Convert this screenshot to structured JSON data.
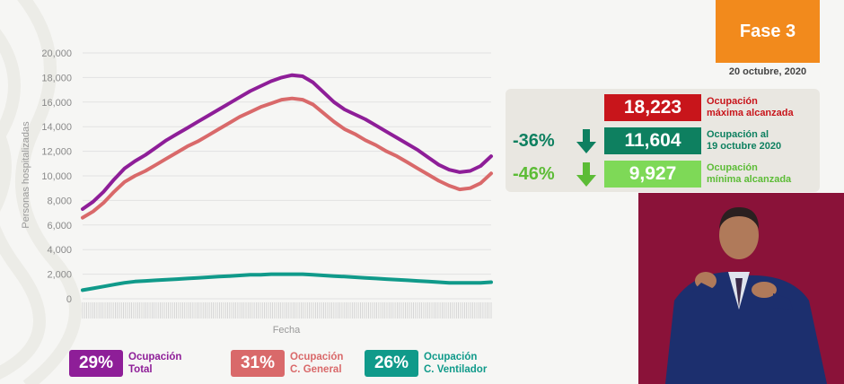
{
  "header": {
    "phase_badge": "Fase 3",
    "date": "20 octubre, 2020"
  },
  "stats": [
    {
      "pct": "",
      "value": "18,223",
      "label_line1": "Ocupación",
      "label_line2": "máxima alcanzada",
      "box_color": "#c8151b",
      "text_color": "#c8151b",
      "arrow": false
    },
    {
      "pct": "-36%",
      "value": "11,604",
      "label_line1": "Ocupación al",
      "label_line2": "19 octubre 2020",
      "box_color": "#0e8060",
      "text_color": "#0e8060",
      "arrow": true
    },
    {
      "pct": "-46%",
      "value": "9,927",
      "label_line1": "Ocupación",
      "label_line2": "mínima alcanzada",
      "box_color": "#7ed957",
      "text_color": "#5cbc36",
      "arrow": true
    }
  ],
  "legend": [
    {
      "pct": "29%",
      "line1": "Ocupación",
      "line2": "Total",
      "color": "#8e1e98"
    },
    {
      "pct": "31%",
      "line1": "Ocupación",
      "line2": "C. General",
      "color": "#d9696a"
    },
    {
      "pct": "26%",
      "line1": "Ocupación",
      "line2": "C. Ventilador",
      "color": "#109a8a"
    }
  ],
  "chart_data": {
    "type": "line",
    "xlabel": "Fecha",
    "ylabel": "Personas hospitalizadas",
    "ylim": [
      0,
      20000
    ],
    "yticks": [
      "0",
      "2,000",
      "4,000",
      "6,000",
      "8,000",
      "10,000",
      "12,000",
      "14,000",
      "16,000",
      "18,000",
      "20,000"
    ],
    "grid": true,
    "series": [
      {
        "name": "Ocupación Total",
        "color": "#8e1e98",
        "values": [
          7300,
          7900,
          8700,
          9700,
          10600,
          11200,
          11700,
          12300,
          12900,
          13400,
          13900,
          14400,
          14900,
          15400,
          15900,
          16400,
          16900,
          17300,
          17700,
          18000,
          18200,
          18100,
          17600,
          16800,
          16000,
          15400,
          15000,
          14600,
          14100,
          13600,
          13100,
          12600,
          12100,
          11500,
          10900,
          10500,
          10300,
          10400,
          10800,
          11600
        ]
      },
      {
        "name": "Ocupación C. General",
        "color": "#d9696a",
        "values": [
          6600,
          7100,
          7800,
          8700,
          9500,
          10000,
          10400,
          10900,
          11400,
          11900,
          12400,
          12800,
          13300,
          13800,
          14300,
          14800,
          15200,
          15600,
          15900,
          16200,
          16300,
          16200,
          15800,
          15100,
          14400,
          13800,
          13400,
          12900,
          12500,
          12000,
          11600,
          11100,
          10600,
          10100,
          9600,
          9200,
          8900,
          9000,
          9400,
          10200
        ]
      },
      {
        "name": "Ocupación C. Ventilador",
        "color": "#109a8a",
        "values": [
          700,
          850,
          1000,
          1150,
          1300,
          1400,
          1450,
          1500,
          1550,
          1600,
          1650,
          1700,
          1750,
          1800,
          1850,
          1900,
          1950,
          1950,
          2000,
          2000,
          2000,
          2000,
          1950,
          1900,
          1850,
          1800,
          1750,
          1700,
          1650,
          1600,
          1550,
          1500,
          1450,
          1400,
          1350,
          1300,
          1300,
          1300,
          1300,
          1350
        ]
      }
    ]
  }
}
